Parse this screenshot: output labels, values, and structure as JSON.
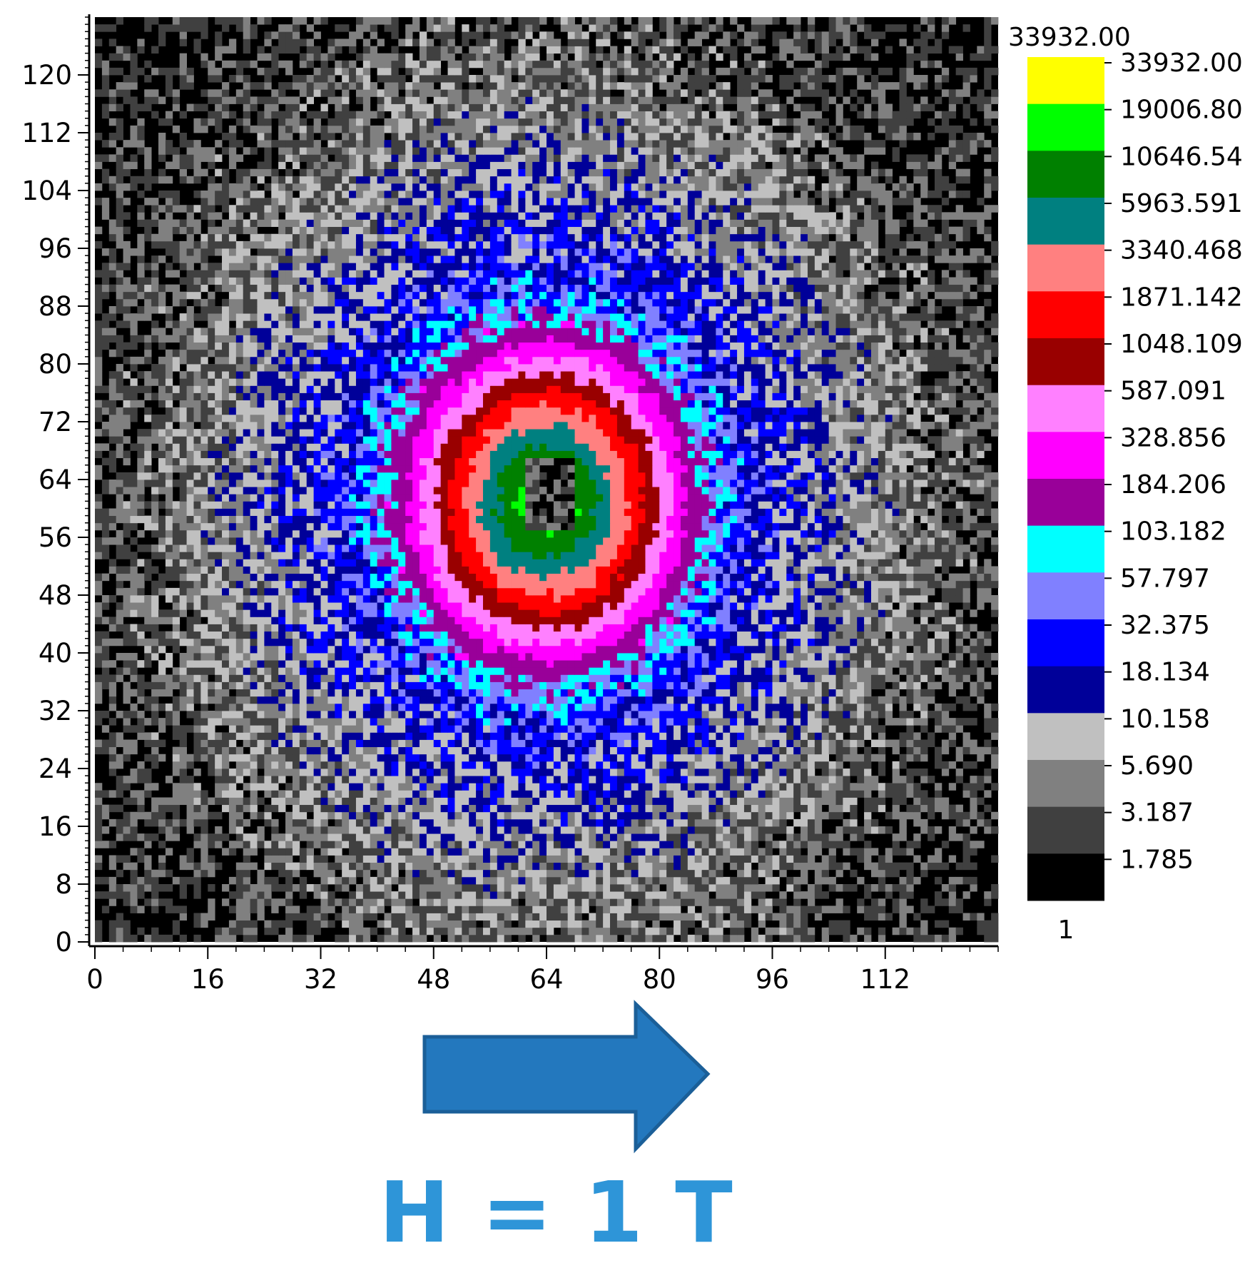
{
  "chart_data": {
    "type": "heatmap",
    "title": "",
    "xlabel": "",
    "ylabel": "",
    "grid_size": 128,
    "xlim": [
      0,
      128
    ],
    "ylim": [
      0,
      128
    ],
    "x_ticks": [
      0,
      16,
      32,
      48,
      64,
      80,
      96,
      112
    ],
    "y_ticks": [
      0,
      8,
      16,
      24,
      32,
      40,
      48,
      56,
      64,
      72,
      80,
      88,
      96,
      104,
      112,
      120
    ],
    "colorbar": {
      "max_label": "33932.00",
      "min_label": "1",
      "boundaries": [
        "33932.00",
        "19006.80",
        "10646.54",
        "5963.591",
        "3340.468",
        "1871.142",
        "1048.109",
        "587.091",
        "328.856",
        "184.206",
        "103.182",
        "57.797",
        "32.375",
        "18.134",
        "10.158",
        "5.690",
        "3.187",
        "1.785"
      ],
      "colors": [
        "#ffff00",
        "#00ff00",
        "#008000",
        "#008080",
        "#ff8080",
        "#ff0000",
        "#990000",
        "#ff80ff",
        "#ff00ff",
        "#990099",
        "#00ffff",
        "#8080ff",
        "#0000ff",
        "#000099",
        "#c0c0c0",
        "#808080",
        "#404040",
        "#000000"
      ]
    },
    "peak_center": [
      64,
      61
    ],
    "peak_value": 33932,
    "hole_region": {
      "x": [
        61,
        68
      ],
      "y": [
        57,
        67
      ]
    }
  },
  "annotation": {
    "arrow_direction": "right",
    "arrow_color": "#2378be",
    "label": "H = 1 T",
    "label_color": "#2e95d8"
  }
}
